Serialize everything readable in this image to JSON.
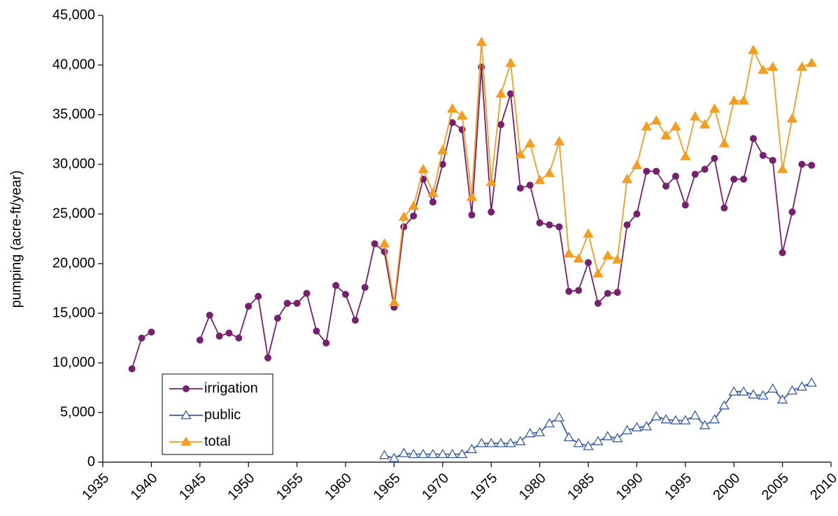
{
  "chart_data": {
    "type": "line",
    "ylabel": "pumping (acre-ft/year)",
    "x": [
      1938,
      1939,
      1940,
      1941,
      1942,
      1943,
      1944,
      1945,
      1946,
      1947,
      1948,
      1949,
      1950,
      1951,
      1952,
      1953,
      1954,
      1955,
      1956,
      1957,
      1958,
      1959,
      1960,
      1961,
      1962,
      1963,
      1964,
      1965,
      1966,
      1967,
      1968,
      1969,
      1970,
      1971,
      1972,
      1973,
      1974,
      1975,
      1976,
      1977,
      1978,
      1979,
      1980,
      1981,
      1982,
      1983,
      1984,
      1985,
      1986,
      1987,
      1988,
      1989,
      1990,
      1991,
      1992,
      1993,
      1994,
      1995,
      1996,
      1997,
      1998,
      1999,
      2000,
      2001,
      2002,
      2003,
      2004,
      2005,
      2006,
      2007,
      2008
    ],
    "series": [
      {
        "name": "irrigation",
        "color": "#77206f",
        "marker": "circle",
        "values": [
          9400,
          12500,
          13100,
          null,
          null,
          null,
          null,
          12300,
          14800,
          12700,
          13000,
          12500,
          15700,
          16700,
          10500,
          14500,
          16000,
          16000,
          17000,
          13200,
          12000,
          17800,
          16900,
          14300,
          17600,
          22000,
          21200,
          15600,
          23700,
          24800,
          28500,
          26200,
          30000,
          34200,
          33500,
          24900,
          39800,
          25200,
          34000,
          37100,
          27600,
          27900,
          24100,
          23900,
          23700,
          17200,
          17300,
          20100,
          16000,
          17000,
          17100,
          23900,
          25000,
          29300,
          29300,
          27800,
          28800,
          25900,
          29000,
          29500,
          30600,
          25600,
          28500,
          28500,
          32600,
          30900,
          30400,
          21100,
          25200,
          30000,
          29900
        ]
      },
      {
        "name": "public",
        "color": "#3a5ca8",
        "marker": "open-triangle",
        "values": [
          null,
          null,
          null,
          null,
          null,
          null,
          null,
          null,
          null,
          null,
          null,
          null,
          null,
          null,
          null,
          null,
          null,
          null,
          null,
          null,
          null,
          null,
          null,
          null,
          null,
          null,
          700,
          400,
          900,
          800,
          800,
          800,
          800,
          800,
          800,
          1300,
          1900,
          1900,
          1900,
          1900,
          2100,
          2900,
          3000,
          3900,
          4500,
          2500,
          1900,
          1600,
          2100,
          2600,
          2400,
          3200,
          3500,
          3600,
          4600,
          4300,
          4200,
          4200,
          4700,
          3700,
          4300,
          5700,
          7100,
          7100,
          6800,
          6700,
          7400,
          6300,
          7200,
          7600,
          8000
        ]
      },
      {
        "name": "total",
        "color": "#f59d1e",
        "marker": "triangle",
        "values": [
          null,
          null,
          null,
          null,
          null,
          null,
          null,
          null,
          null,
          null,
          null,
          null,
          null,
          null,
          null,
          null,
          null,
          null,
          null,
          null,
          null,
          null,
          null,
          null,
          null,
          null,
          22000,
          16100,
          24700,
          25800,
          29500,
          27100,
          31400,
          35600,
          34900,
          26700,
          42300,
          28200,
          37100,
          40200,
          31000,
          32100,
          28400,
          29100,
          32300,
          21000,
          20500,
          23000,
          19000,
          20800,
          20400,
          28500,
          29900,
          33800,
          34400,
          32900,
          33800,
          30800,
          34800,
          34000,
          35600,
          32100,
          36400,
          36400,
          41500,
          39500,
          39800,
          29500,
          34600,
          39800,
          40200
        ]
      }
    ],
    "xlim": [
      1935,
      2010
    ],
    "xticks": [
      1935,
      1940,
      1945,
      1950,
      1955,
      1960,
      1965,
      1970,
      1975,
      1980,
      1985,
      1990,
      1995,
      2000,
      2005,
      2010
    ],
    "ylim": [
      0,
      45000
    ],
    "yticks": [
      0,
      {
        "value": 5000,
        "label": "5,000"
      },
      {
        "value": 10000,
        "label": "10,000"
      },
      {
        "value": 15000,
        "label": "15,000"
      },
      {
        "value": 20000,
        "label": "20,000"
      },
      {
        "value": 25000,
        "label": "25,000"
      },
      {
        "value": 30000,
        "label": "30,000"
      },
      {
        "value": 35000,
        "label": "35,000"
      },
      {
        "value": 40000,
        "label": "40,000"
      },
      {
        "value": 45000,
        "label": "45,000"
      }
    ],
    "grid": false,
    "legend": "lower left"
  }
}
